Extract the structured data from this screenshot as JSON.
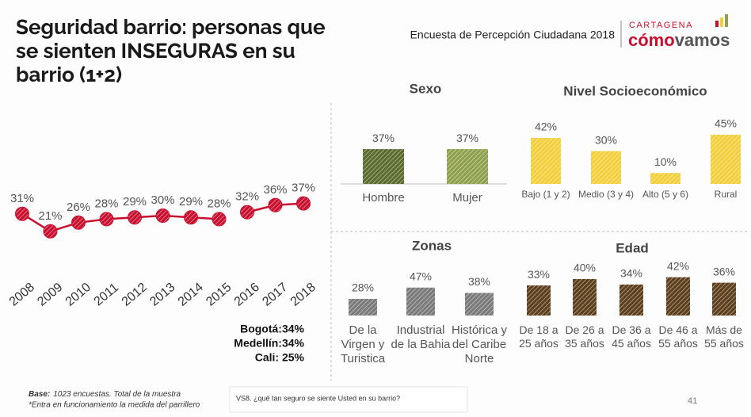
{
  "header": {
    "title": "Seguridad barrio: personas que se sienten INSEGURAS en su barrio (1+2)",
    "subtitle": "Encuesta de Percepción Ciudadana 2018",
    "logo_city": "CARTAGENA",
    "logo_first": "cómo",
    "logo_second": "vamos"
  },
  "chart_data": [
    {
      "type": "line",
      "categories": [
        "2008",
        "2009",
        "2010",
        "2011",
        "2012",
        "2013",
        "2014",
        "2015",
        "2016",
        "2017",
        "2018"
      ],
      "series": [
        {
          "color": "#c8102e",
          "values": [
            31,
            21,
            26,
            28,
            29,
            30,
            29,
            28,
            null,
            null,
            null
          ],
          "value_labels": [
            "31%",
            "21%",
            "26%",
            "28%",
            "29%",
            "30%",
            "29%",
            "28%",
            null,
            null,
            null
          ]
        },
        {
          "color": "#c8102e",
          "values": [
            null,
            null,
            null,
            null,
            null,
            null,
            null,
            null,
            32,
            36,
            37
          ],
          "value_labels": [
            null,
            null,
            null,
            null,
            null,
            null,
            null,
            null,
            "32%",
            "36%",
            "37%"
          ]
        }
      ],
      "ylim": [
        0,
        100
      ],
      "annotations": [
        "Bogotá:34%",
        "Medellín:34%",
        "Cali: 25%"
      ]
    },
    {
      "type": "bar",
      "title": "Sexo",
      "categories": [
        "Hombre",
        "Mujer"
      ],
      "values": [
        37,
        37
      ],
      "value_labels": [
        "37%",
        "37%"
      ],
      "colors": [
        "#5b6b2e",
        "#8fa04c"
      ],
      "ylim": [
        0,
        80
      ]
    },
    {
      "type": "bar",
      "title": "Nivel Socioeconómico",
      "categories": [
        "Bajo (1 y 2)",
        "Medio (3 y 4)",
        "Alto (5 y 6)",
        "Rural"
      ],
      "values": [
        42,
        30,
        10,
        45
      ],
      "value_labels": [
        "42%",
        "30%",
        "10%",
        "45%"
      ],
      "colors": [
        "#f2cf3b",
        "#f2cf3b",
        "#f2cf3b",
        "#f2cf3b"
      ],
      "ylim": [
        0,
        50
      ]
    },
    {
      "type": "bar",
      "title": "Zonas",
      "categories": [
        "De la Virgen y Turistica",
        "Industrial de la Bahia",
        "Histórica y del Caribe Norte"
      ],
      "values": [
        28,
        47,
        38
      ],
      "value_labels": [
        "28%",
        "47%",
        "38%"
      ],
      "colors": [
        "#7a7a7a",
        "#7a7a7a",
        "#7a7a7a"
      ],
      "ylim": [
        0,
        100
      ]
    },
    {
      "type": "bar",
      "title": "Edad",
      "categories": [
        "De 18 a 25 años",
        "De 26 a 35 años",
        "De 36 a 45 años",
        "De 46 a 55 años",
        "Más de 55 años"
      ],
      "values": [
        33,
        40,
        34,
        42,
        36
      ],
      "value_labels": [
        "33%",
        "40%",
        "34%",
        "42%",
        "36%"
      ],
      "colors": [
        "#5e3f1c",
        "#5e3f1c",
        "#5e3f1c",
        "#5e3f1c",
        "#5e3f1c"
      ],
      "ylim": [
        0,
        60
      ]
    }
  ],
  "footer": {
    "base_label": "Base:",
    "base_text": "1023 encuestas. Total de la muestra",
    "note": "*Entra en funcionamiento la medida del parrillero",
    "question": "VS8. ¿qué tan seguro se siente Usted en su barrio?",
    "page": 41
  }
}
